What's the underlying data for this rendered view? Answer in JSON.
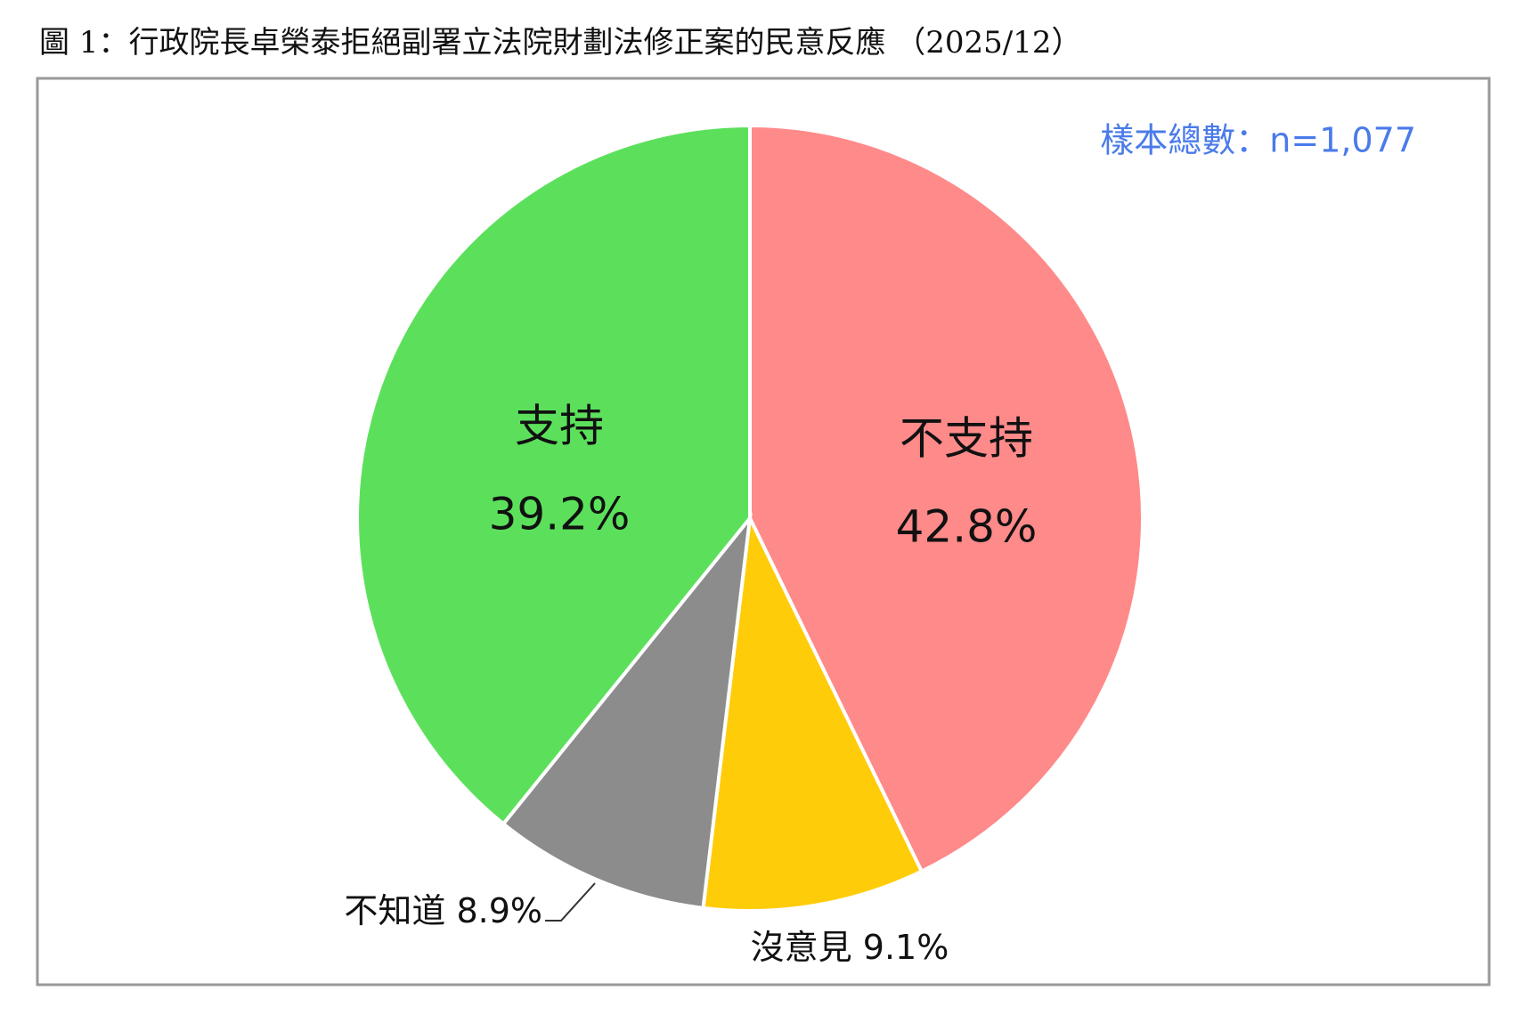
{
  "chart_data": {
    "type": "pie",
    "title": "圖 1：行政院長卓榮泰拒絕副署立法院財劃法修正案的民意反應 （2025/12）",
    "annotation": "樣本總數：n=1,077",
    "categories": [
      "不支持",
      "沒意見",
      "不知道",
      "支持"
    ],
    "values": [
      42.8,
      9.1,
      8.9,
      39.2
    ],
    "value_labels": [
      "42.8%",
      "9.1%",
      "8.9%",
      "39.2%"
    ],
    "colors": [
      "#ff8a8a",
      "#ffcc0a",
      "#8c8c8c",
      "#5ce05c"
    ]
  }
}
